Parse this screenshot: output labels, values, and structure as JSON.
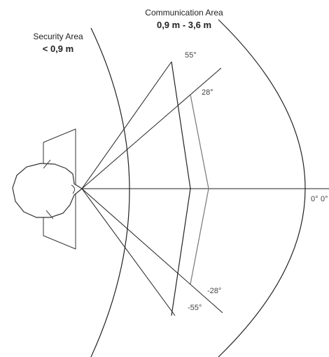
{
  "communication": {
    "title": "Communication Area",
    "range": "0,9 m - 3,6 m"
  },
  "security": {
    "title": "Security Area",
    "range": "< 0,9 m"
  },
  "angles": {
    "outer_top": "55°",
    "inner_top": "28°",
    "inner_bottom": "-28°",
    "outer_bottom": "-55°",
    "zero_a": "0°",
    "zero_b": "0°"
  }
}
